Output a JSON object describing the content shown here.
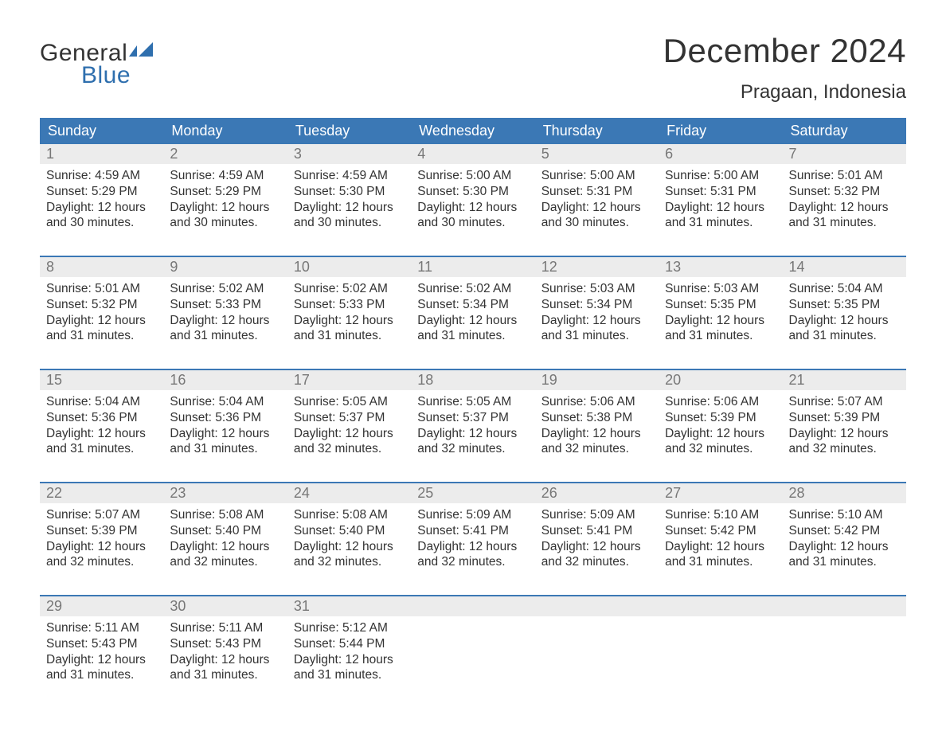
{
  "logo": {
    "word1": "General",
    "word2": "Blue"
  },
  "title": "December 2024",
  "location": "Pragaan, Indonesia",
  "colors": {
    "header_bg": "#3b78b5",
    "header_text": "#ffffff",
    "daynum_bg": "#ececec",
    "daynum_text": "#777777",
    "body_text": "#333333",
    "logo_blue": "#2f6fae",
    "week_border": "#3b78b5",
    "page_bg": "#ffffff"
  },
  "day_headers": [
    "Sunday",
    "Monday",
    "Tuesday",
    "Wednesday",
    "Thursday",
    "Friday",
    "Saturday"
  ],
  "weeks": [
    [
      {
        "num": "1",
        "sunrise": "Sunrise: 4:59 AM",
        "sunset": "Sunset: 5:29 PM",
        "dl1": "Daylight: 12 hours",
        "dl2": "and 30 minutes."
      },
      {
        "num": "2",
        "sunrise": "Sunrise: 4:59 AM",
        "sunset": "Sunset: 5:29 PM",
        "dl1": "Daylight: 12 hours",
        "dl2": "and 30 minutes."
      },
      {
        "num": "3",
        "sunrise": "Sunrise: 4:59 AM",
        "sunset": "Sunset: 5:30 PM",
        "dl1": "Daylight: 12 hours",
        "dl2": "and 30 minutes."
      },
      {
        "num": "4",
        "sunrise": "Sunrise: 5:00 AM",
        "sunset": "Sunset: 5:30 PM",
        "dl1": "Daylight: 12 hours",
        "dl2": "and 30 minutes."
      },
      {
        "num": "5",
        "sunrise": "Sunrise: 5:00 AM",
        "sunset": "Sunset: 5:31 PM",
        "dl1": "Daylight: 12 hours",
        "dl2": "and 30 minutes."
      },
      {
        "num": "6",
        "sunrise": "Sunrise: 5:00 AM",
        "sunset": "Sunset: 5:31 PM",
        "dl1": "Daylight: 12 hours",
        "dl2": "and 31 minutes."
      },
      {
        "num": "7",
        "sunrise": "Sunrise: 5:01 AM",
        "sunset": "Sunset: 5:32 PM",
        "dl1": "Daylight: 12 hours",
        "dl2": "and 31 minutes."
      }
    ],
    [
      {
        "num": "8",
        "sunrise": "Sunrise: 5:01 AM",
        "sunset": "Sunset: 5:32 PM",
        "dl1": "Daylight: 12 hours",
        "dl2": "and 31 minutes."
      },
      {
        "num": "9",
        "sunrise": "Sunrise: 5:02 AM",
        "sunset": "Sunset: 5:33 PM",
        "dl1": "Daylight: 12 hours",
        "dl2": "and 31 minutes."
      },
      {
        "num": "10",
        "sunrise": "Sunrise: 5:02 AM",
        "sunset": "Sunset: 5:33 PM",
        "dl1": "Daylight: 12 hours",
        "dl2": "and 31 minutes."
      },
      {
        "num": "11",
        "sunrise": "Sunrise: 5:02 AM",
        "sunset": "Sunset: 5:34 PM",
        "dl1": "Daylight: 12 hours",
        "dl2": "and 31 minutes."
      },
      {
        "num": "12",
        "sunrise": "Sunrise: 5:03 AM",
        "sunset": "Sunset: 5:34 PM",
        "dl1": "Daylight: 12 hours",
        "dl2": "and 31 minutes."
      },
      {
        "num": "13",
        "sunrise": "Sunrise: 5:03 AM",
        "sunset": "Sunset: 5:35 PM",
        "dl1": "Daylight: 12 hours",
        "dl2": "and 31 minutes."
      },
      {
        "num": "14",
        "sunrise": "Sunrise: 5:04 AM",
        "sunset": "Sunset: 5:35 PM",
        "dl1": "Daylight: 12 hours",
        "dl2": "and 31 minutes."
      }
    ],
    [
      {
        "num": "15",
        "sunrise": "Sunrise: 5:04 AM",
        "sunset": "Sunset: 5:36 PM",
        "dl1": "Daylight: 12 hours",
        "dl2": "and 31 minutes."
      },
      {
        "num": "16",
        "sunrise": "Sunrise: 5:04 AM",
        "sunset": "Sunset: 5:36 PM",
        "dl1": "Daylight: 12 hours",
        "dl2": "and 31 minutes."
      },
      {
        "num": "17",
        "sunrise": "Sunrise: 5:05 AM",
        "sunset": "Sunset: 5:37 PM",
        "dl1": "Daylight: 12 hours",
        "dl2": "and 32 minutes."
      },
      {
        "num": "18",
        "sunrise": "Sunrise: 5:05 AM",
        "sunset": "Sunset: 5:37 PM",
        "dl1": "Daylight: 12 hours",
        "dl2": "and 32 minutes."
      },
      {
        "num": "19",
        "sunrise": "Sunrise: 5:06 AM",
        "sunset": "Sunset: 5:38 PM",
        "dl1": "Daylight: 12 hours",
        "dl2": "and 32 minutes."
      },
      {
        "num": "20",
        "sunrise": "Sunrise: 5:06 AM",
        "sunset": "Sunset: 5:39 PM",
        "dl1": "Daylight: 12 hours",
        "dl2": "and 32 minutes."
      },
      {
        "num": "21",
        "sunrise": "Sunrise: 5:07 AM",
        "sunset": "Sunset: 5:39 PM",
        "dl1": "Daylight: 12 hours",
        "dl2": "and 32 minutes."
      }
    ],
    [
      {
        "num": "22",
        "sunrise": "Sunrise: 5:07 AM",
        "sunset": "Sunset: 5:39 PM",
        "dl1": "Daylight: 12 hours",
        "dl2": "and 32 minutes."
      },
      {
        "num": "23",
        "sunrise": "Sunrise: 5:08 AM",
        "sunset": "Sunset: 5:40 PM",
        "dl1": "Daylight: 12 hours",
        "dl2": "and 32 minutes."
      },
      {
        "num": "24",
        "sunrise": "Sunrise: 5:08 AM",
        "sunset": "Sunset: 5:40 PM",
        "dl1": "Daylight: 12 hours",
        "dl2": "and 32 minutes."
      },
      {
        "num": "25",
        "sunrise": "Sunrise: 5:09 AM",
        "sunset": "Sunset: 5:41 PM",
        "dl1": "Daylight: 12 hours",
        "dl2": "and 32 minutes."
      },
      {
        "num": "26",
        "sunrise": "Sunrise: 5:09 AM",
        "sunset": "Sunset: 5:41 PM",
        "dl1": "Daylight: 12 hours",
        "dl2": "and 32 minutes."
      },
      {
        "num": "27",
        "sunrise": "Sunrise: 5:10 AM",
        "sunset": "Sunset: 5:42 PM",
        "dl1": "Daylight: 12 hours",
        "dl2": "and 31 minutes."
      },
      {
        "num": "28",
        "sunrise": "Sunrise: 5:10 AM",
        "sunset": "Sunset: 5:42 PM",
        "dl1": "Daylight: 12 hours",
        "dl2": "and 31 minutes."
      }
    ],
    [
      {
        "num": "29",
        "sunrise": "Sunrise: 5:11 AM",
        "sunset": "Sunset: 5:43 PM",
        "dl1": "Daylight: 12 hours",
        "dl2": "and 31 minutes."
      },
      {
        "num": "30",
        "sunrise": "Sunrise: 5:11 AM",
        "sunset": "Sunset: 5:43 PM",
        "dl1": "Daylight: 12 hours",
        "dl2": "and 31 minutes."
      },
      {
        "num": "31",
        "sunrise": "Sunrise: 5:12 AM",
        "sunset": "Sunset: 5:44 PM",
        "dl1": "Daylight: 12 hours",
        "dl2": "and 31 minutes."
      },
      {
        "empty": true
      },
      {
        "empty": true
      },
      {
        "empty": true
      },
      {
        "empty": true
      }
    ]
  ]
}
